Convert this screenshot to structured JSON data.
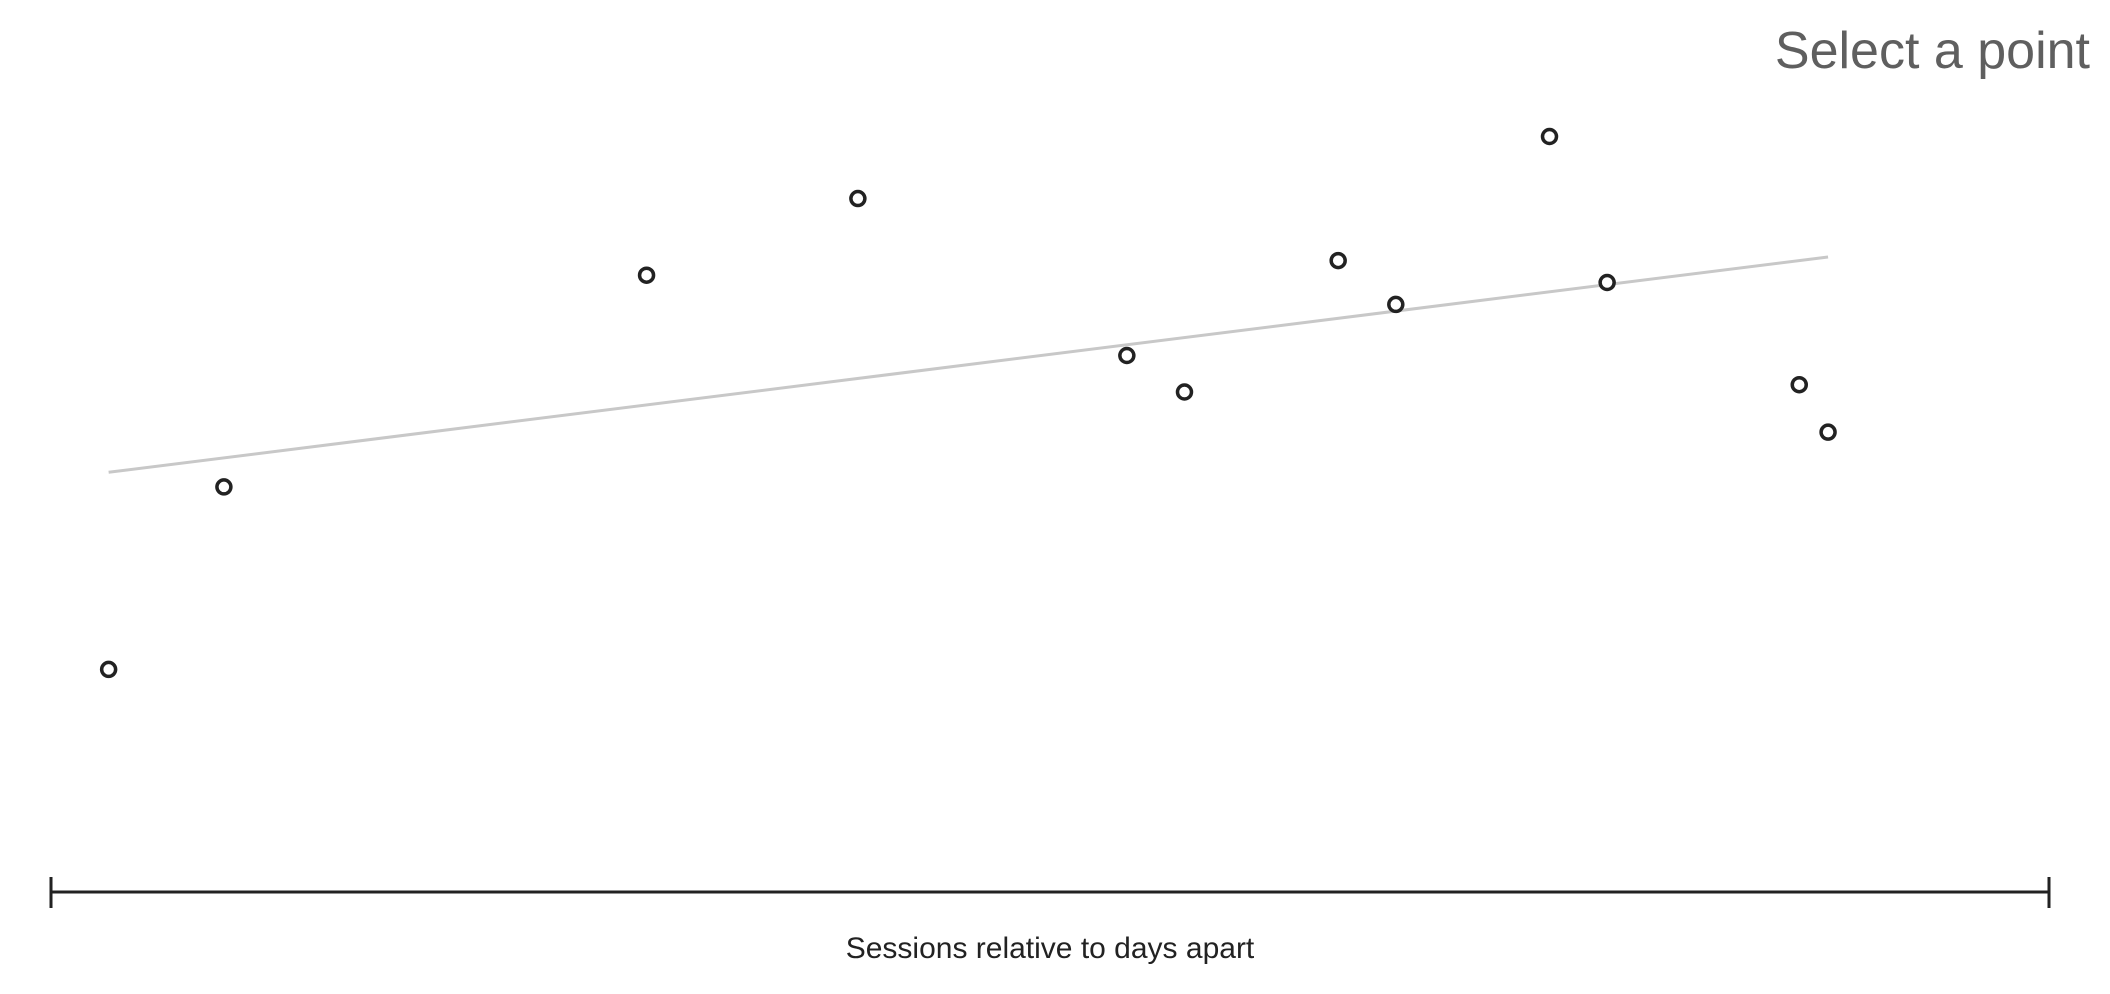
{
  "hint": {
    "text": "Select a point"
  },
  "chart_data": {
    "type": "scatter",
    "title": "",
    "xlabel": "Sessions relative to days apart",
    "ylabel": "",
    "xlim": [
      -3,
      101
    ],
    "ylim": [
      0,
      100
    ],
    "x": [
      0,
      6,
      28,
      39,
      53,
      56,
      64,
      67,
      75,
      78,
      88,
      89.5
    ],
    "y": [
      22,
      47,
      76,
      86.5,
      65,
      60,
      78,
      72,
      95,
      75,
      61,
      54.5
    ],
    "trendline": {
      "x": [
        0,
        89.5
      ],
      "y": [
        49,
        78.5
      ]
    },
    "grid": false,
    "legend": "none",
    "colors": {
      "points_stroke": "#222222",
      "points_fill": "#ffffff",
      "trendline": "#c8c8c8",
      "axis": "#222222",
      "hint": "#5f5f5f"
    }
  }
}
